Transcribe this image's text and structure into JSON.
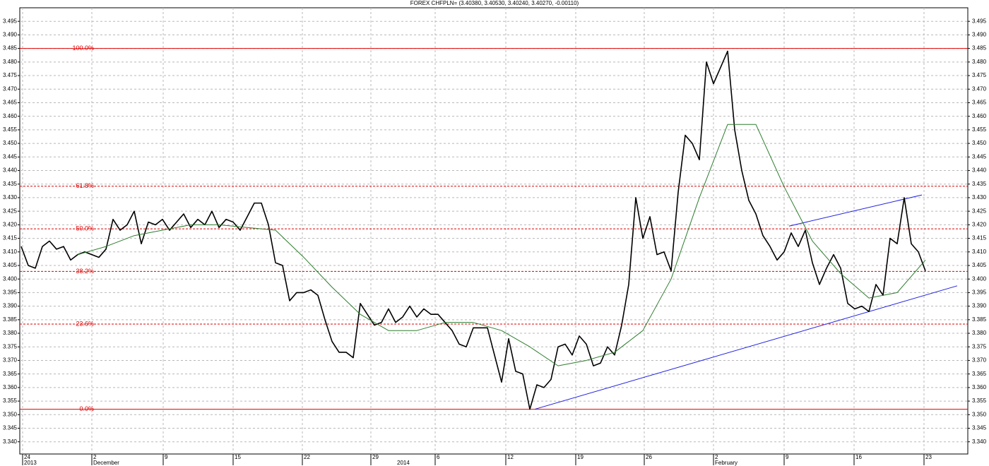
{
  "chart_data": {
    "type": "line",
    "title": "FOREX CHFPLN= (3.40380, 3.40530, 3.40240, 3.40270, -0.00110)",
    "grid": true,
    "xlim": [
      -0.2,
      134
    ],
    "ylim": [
      3.3355,
      3.5
    ],
    "xticks": [
      {
        "value": 0.2,
        "label": "24"
      },
      {
        "value": 10,
        "label": "2"
      },
      {
        "value": 20.1,
        "label": "9"
      },
      {
        "value": 30,
        "label": "15"
      },
      {
        "value": 39.8,
        "label": "22"
      },
      {
        "value": 49.5,
        "label": "29"
      },
      {
        "value": 58.6,
        "label": "6"
      },
      {
        "value": 68.6,
        "label": "12"
      },
      {
        "value": 78.5,
        "label": "19"
      },
      {
        "value": 88.2,
        "label": "26"
      },
      {
        "value": 98,
        "label": "2"
      },
      {
        "value": 108,
        "label": "9"
      },
      {
        "value": 117.9,
        "label": "16"
      },
      {
        "value": 127.8,
        "label": "23"
      }
    ],
    "x_period_labels": [
      {
        "value": 0.2,
        "label": "2013"
      },
      {
        "value": 10,
        "label": "December"
      },
      {
        "value": 53,
        "label": "2014"
      },
      {
        "value": 98,
        "label": "February"
      }
    ],
    "yticks": [
      {
        "value": 3.34,
        "label": "3.340"
      },
      3.345,
      {
        "value": 3.35,
        "label": "3.350"
      },
      3.355,
      {
        "value": 3.36,
        "label": "3.360"
      },
      3.365,
      {
        "value": 3.37,
        "label": "3.370"
      },
      3.375,
      {
        "value": 3.38,
        "label": "3.380"
      },
      3.385,
      {
        "value": 3.39,
        "label": "3.390"
      },
      3.395,
      {
        "value": 3.4,
        "label": "3.400"
      },
      3.405,
      {
        "value": 3.41,
        "label": "3.410"
      },
      3.415,
      {
        "value": 3.42,
        "label": "3.420"
      },
      3.425,
      {
        "value": 3.43,
        "label": "3.430"
      },
      3.435,
      {
        "value": 3.44,
        "label": "3.440"
      },
      3.445,
      {
        "value": 3.45,
        "label": "3.450"
      },
      3.455,
      {
        "value": 3.46,
        "label": "3.460"
      },
      3.465,
      {
        "value": 3.47,
        "label": "3.470"
      },
      3.475,
      {
        "value": 3.48,
        "label": "3.480"
      },
      3.485,
      {
        "value": 3.49,
        "label": "3.490"
      },
      3.495
    ],
    "series": [
      {
        "color": "#000000",
        "values": [
          3.412,
          3.405,
          3.404,
          3.412,
          3.414,
          3.411,
          3.412,
          3.407,
          3.409,
          3.41,
          3.409,
          3.408,
          3.411,
          3.422,
          3.418,
          3.42,
          3.425,
          3.413,
          3.421,
          3.42,
          3.422,
          3.418,
          3.421,
          3.424,
          3.419,
          3.422,
          3.42,
          3.425,
          3.419,
          3.422,
          3.421,
          3.418,
          3.423,
          3.428,
          3.428,
          3.42,
          3.406,
          3.405,
          3.392,
          3.395,
          3.395,
          3.396,
          3.394,
          3.385,
          3.377,
          3.373,
          3.373,
          3.371,
          3.391,
          3.387,
          3.383,
          3.384,
          3.389,
          3.384,
          3.386,
          3.39,
          3.386,
          3.389,
          3.387,
          3.387,
          3.384,
          3.381,
          3.376,
          3.375,
          3.382,
          3.382,
          3.382,
          3.372,
          3.362,
          3.378,
          3.366,
          3.365,
          3.352,
          3.361,
          3.36,
          3.363,
          3.375,
          3.376,
          3.372,
          3.379,
          3.376,
          3.368,
          3.369,
          3.375,
          3.372,
          3.383,
          3.398,
          3.43,
          3.415,
          3.423,
          3.409,
          3.41,
          3.403,
          3.432,
          3.453,
          3.45,
          3.444,
          3.48,
          3.472,
          3.478,
          3.484,
          3.455,
          3.44,
          3.429,
          3.424,
          3.416,
          3.412,
          3.407,
          3.41,
          3.417,
          3.412,
          3.418,
          3.406,
          3.398,
          3.404,
          3.409,
          3.404,
          3.391,
          3.389,
          3.39,
          3.388,
          3.398,
          3.394,
          3.415,
          3.413,
          3.43,
          3.413,
          3.41,
          3.403
        ]
      },
      {
        "color": "#2e7d2e",
        "x": [
          8,
          12,
          16,
          20,
          24,
          28,
          32,
          36,
          40,
          44,
          48,
          52,
          56,
          60,
          64,
          68,
          72,
          76,
          80,
          84,
          88,
          92,
          96,
          100,
          104,
          108,
          112,
          116,
          120,
          124,
          128
        ],
        "values": [
          3.409,
          3.412,
          3.416,
          3.418,
          3.42,
          3.42,
          3.419,
          3.418,
          3.408,
          3.397,
          3.387,
          3.381,
          3.381,
          3.384,
          3.384,
          3.381,
          3.375,
          3.368,
          3.37,
          3.373,
          3.381,
          3.4,
          3.43,
          3.457,
          3.457,
          3.434,
          3.414,
          3.402,
          3.393,
          3.395,
          3.407
        ]
      }
    ],
    "fib_levels": [
      {
        "label": "100.0%",
        "value": 3.485
      },
      {
        "label": "61.8%",
        "value": 3.4342
      },
      {
        "label": "50.0%",
        "value": 3.4185
      },
      {
        "label": "38.2%",
        "value": 3.4028
      },
      {
        "label": "23.6%",
        "value": 3.3834
      },
      {
        "label": "0.0%",
        "value": 3.352
      }
    ],
    "fib_color": "#e00000",
    "trend_lines": [
      {
        "color": "#2020e0",
        "x": [
          72.7,
          132.5
        ],
        "values": [
          3.352,
          3.3975
        ]
      },
      {
        "color": "#2020e0",
        "x": [
          108.7,
          127.5
        ],
        "values": [
          3.4195,
          3.431
        ]
      }
    ]
  }
}
